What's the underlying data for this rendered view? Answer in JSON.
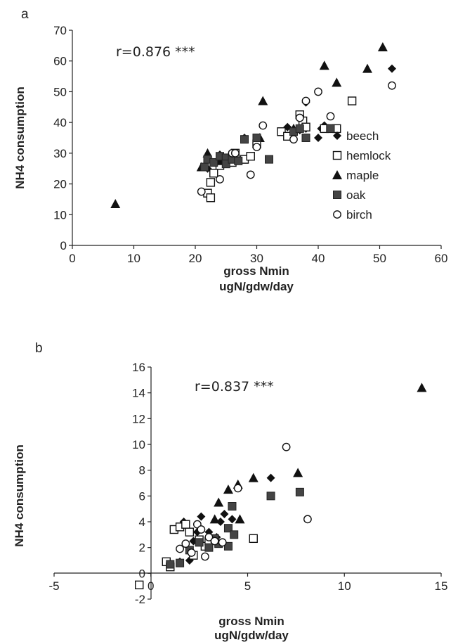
{
  "chart_data": [
    {
      "panel": "a",
      "type": "scatter",
      "annotation": "r=0.876 ***",
      "xlabel": "gross Nmin",
      "xlabel2": "ugN/gdw/day",
      "ylabel": "NH4 consumption",
      "xlim": [
        0,
        60
      ],
      "ylim": [
        0,
        70
      ],
      "xticks": [
        0,
        10,
        20,
        30,
        40,
        50,
        60
      ],
      "yticks": [
        0,
        10,
        20,
        30,
        40,
        50,
        60,
        70
      ],
      "legend_position": "right",
      "series": [
        {
          "name": "beech",
          "marker": "diamond",
          "points": [
            [
              22,
              25
            ],
            [
              23,
              27
            ],
            [
              24,
              29.5
            ],
            [
              28,
              35
            ],
            [
              34,
              37
            ],
            [
              35,
              38.5
            ],
            [
              37,
              37.5
            ],
            [
              38,
              38
            ],
            [
              38,
              46.5
            ],
            [
              40,
              35
            ],
            [
              40.5,
              38
            ],
            [
              41,
              39
            ],
            [
              52,
              57.5
            ]
          ]
        },
        {
          "name": "hemlock",
          "marker": "square-open",
          "points": [
            [
              22,
              17
            ],
            [
              22.5,
              15.5
            ],
            [
              22.5,
              20.5
            ],
            [
              23,
              23.5
            ],
            [
              24,
              26
            ],
            [
              26,
              27
            ],
            [
              26.5,
              30
            ],
            [
              28,
              28
            ],
            [
              29,
              29
            ],
            [
              30,
              33
            ],
            [
              34,
              37
            ],
            [
              35,
              35.5
            ],
            [
              37,
              42.5
            ],
            [
              37.5,
              40.5
            ],
            [
              38,
              38.5
            ],
            [
              41,
              38
            ],
            [
              42,
              38
            ],
            [
              43,
              38
            ],
            [
              45.5,
              47
            ]
          ]
        },
        {
          "name": "maple",
          "marker": "triangle",
          "points": [
            [
              7,
              13.5
            ],
            [
              21,
              25.5
            ],
            [
              22,
              30
            ],
            [
              24,
              27.5
            ],
            [
              26,
              28
            ],
            [
              30.5,
              35
            ],
            [
              31,
              47
            ],
            [
              36,
              38
            ],
            [
              41,
              58.5
            ],
            [
              43,
              53
            ],
            [
              48,
              57.5
            ],
            [
              50.5,
              64.5
            ]
          ]
        },
        {
          "name": "oak",
          "marker": "square-filled",
          "points": [
            [
              21.5,
              25.5
            ],
            [
              22,
              28
            ],
            [
              23,
              27
            ],
            [
              24,
              29
            ],
            [
              25,
              28.5
            ],
            [
              25,
              26.5
            ],
            [
              26,
              28
            ],
            [
              27,
              27.5
            ],
            [
              28,
              34.5
            ],
            [
              30,
              35
            ],
            [
              32,
              28
            ],
            [
              36,
              37
            ],
            [
              37,
              38
            ],
            [
              38,
              35
            ],
            [
              42,
              38
            ]
          ]
        },
        {
          "name": "birch",
          "marker": "circle-open",
          "points": [
            [
              21,
              17.5
            ],
            [
              24,
              21.5
            ],
            [
              26,
              30
            ],
            [
              26.5,
              30
            ],
            [
              29,
              23
            ],
            [
              30,
              32
            ],
            [
              31,
              39
            ],
            [
              36,
              34.5
            ],
            [
              37,
              41.5
            ],
            [
              38,
              47
            ],
            [
              40,
              50
            ],
            [
              42,
              42
            ],
            [
              52,
              52
            ]
          ]
        }
      ]
    },
    {
      "panel": "b",
      "type": "scatter",
      "annotation": "r=0.837 ***",
      "xlabel": "gross Nmin",
      "xlabel2": "ugN/gdw/day",
      "ylabel": "NH4 consumption",
      "xlim": [
        -5,
        15
      ],
      "ylim": [
        -2,
        16
      ],
      "xticks": [
        -5,
        0,
        5,
        10,
        15
      ],
      "yticks": [
        -2,
        0,
        2,
        4,
        6,
        8,
        10,
        12,
        14,
        16
      ],
      "series": [
        {
          "name": "beech",
          "marker": "diamond",
          "points": [
            [
              1.5,
              0.9
            ],
            [
              1.7,
              4.0
            ],
            [
              2.0,
              1.0
            ],
            [
              2.2,
              2.5
            ],
            [
              2.4,
              3.2
            ],
            [
              2.6,
              4.4
            ],
            [
              3.0,
              3.2
            ],
            [
              3.4,
              2.8
            ],
            [
              3.6,
              4.0
            ],
            [
              3.8,
              4.6
            ],
            [
              4.2,
              4.2
            ],
            [
              6.2,
              7.4
            ]
          ]
        },
        {
          "name": "hemlock",
          "marker": "square-open",
          "points": [
            [
              -0.6,
              -0.9
            ],
            [
              0.8,
              0.9
            ],
            [
              1.0,
              0.5
            ],
            [
              1.2,
              3.4
            ],
            [
              1.5,
              3.6
            ],
            [
              1.8,
              3.8
            ],
            [
              2.0,
              3.2
            ],
            [
              2.2,
              1.4
            ],
            [
              2.5,
              2.6
            ],
            [
              2.8,
              2.1
            ],
            [
              3.0,
              2.5
            ],
            [
              5.3,
              2.7
            ]
          ]
        },
        {
          "name": "maple",
          "marker": "triangle",
          "points": [
            [
              3.3,
              4.2
            ],
            [
              3.5,
              5.5
            ],
            [
              4.0,
              6.5
            ],
            [
              4.5,
              6.9
            ],
            [
              4.6,
              4.2
            ],
            [
              5.3,
              7.4
            ],
            [
              7.6,
              7.8
            ],
            [
              14.0,
              14.4
            ]
          ]
        },
        {
          "name": "oak",
          "marker": "square-filled",
          "points": [
            [
              1.0,
              0.7
            ],
            [
              1.5,
              0.8
            ],
            [
              2.0,
              1.8
            ],
            [
              2.5,
              2.4
            ],
            [
              3.0,
              2.0
            ],
            [
              3.3,
              2.7
            ],
            [
              3.5,
              2.3
            ],
            [
              4.0,
              2.1
            ],
            [
              4.0,
              3.5
            ],
            [
              4.2,
              5.2
            ],
            [
              4.3,
              3.0
            ],
            [
              6.2,
              6.0
            ],
            [
              7.7,
              6.3
            ]
          ]
        },
        {
          "name": "birch",
          "marker": "circle-open",
          "points": [
            [
              1.5,
              1.9
            ],
            [
              1.8,
              2.3
            ],
            [
              2.1,
              1.6
            ],
            [
              2.4,
              3.8
            ],
            [
              2.6,
              3.4
            ],
            [
              2.8,
              1.3
            ],
            [
              3.0,
              2.8
            ],
            [
              3.3,
              2.5
            ],
            [
              3.7,
              2.4
            ],
            [
              4.5,
              6.6
            ],
            [
              7.0,
              9.8
            ],
            [
              8.1,
              4.2
            ]
          ]
        }
      ]
    }
  ]
}
